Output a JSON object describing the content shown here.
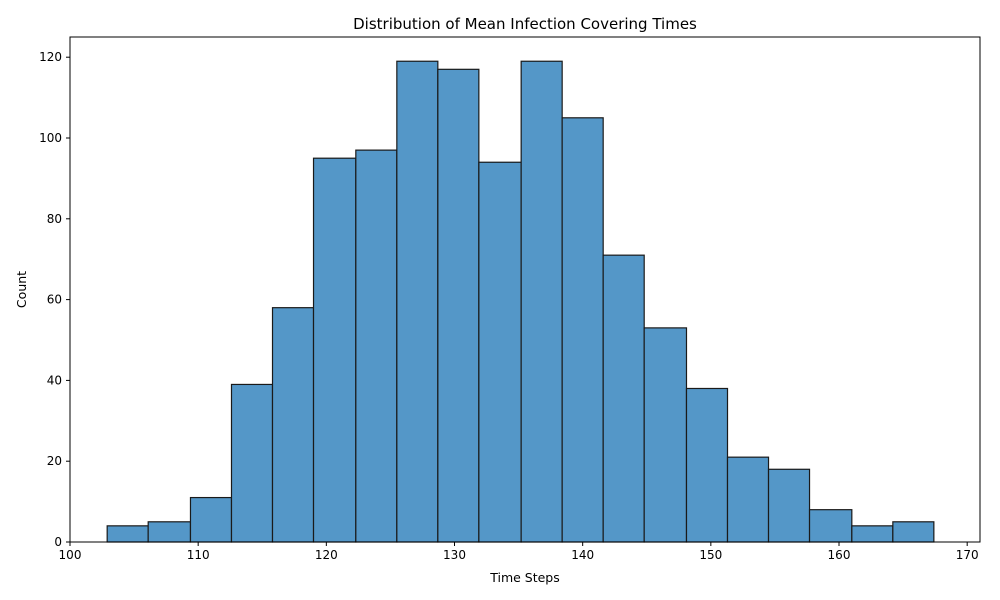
{
  "chart_data": {
    "type": "bar",
    "title": "Distribution of Mean Infection Covering Times",
    "xlabel": "Time Steps",
    "ylabel": "Count",
    "xlim": [
      100,
      171
    ],
    "ylim": [
      0,
      125
    ],
    "xticks": [
      100,
      110,
      120,
      130,
      140,
      150,
      160,
      170
    ],
    "yticks": [
      0,
      20,
      40,
      60,
      80,
      100,
      120
    ],
    "bin_edges": [
      102.9,
      106.1,
      109.4,
      112.6,
      115.8,
      119.0,
      122.3,
      125.5,
      128.7,
      131.9,
      135.2,
      138.4,
      141.6,
      144.8,
      148.1,
      151.3,
      154.5,
      157.7,
      161.0,
      164.2,
      167.4
    ],
    "values": [
      4,
      5,
      11,
      39,
      58,
      95,
      97,
      119,
      117,
      94,
      119,
      105,
      71,
      53,
      38,
      21,
      18,
      8,
      4,
      5
    ],
    "bar_color": "#5497c8",
    "edge_color": "#1a1a1a",
    "grid": false
  }
}
